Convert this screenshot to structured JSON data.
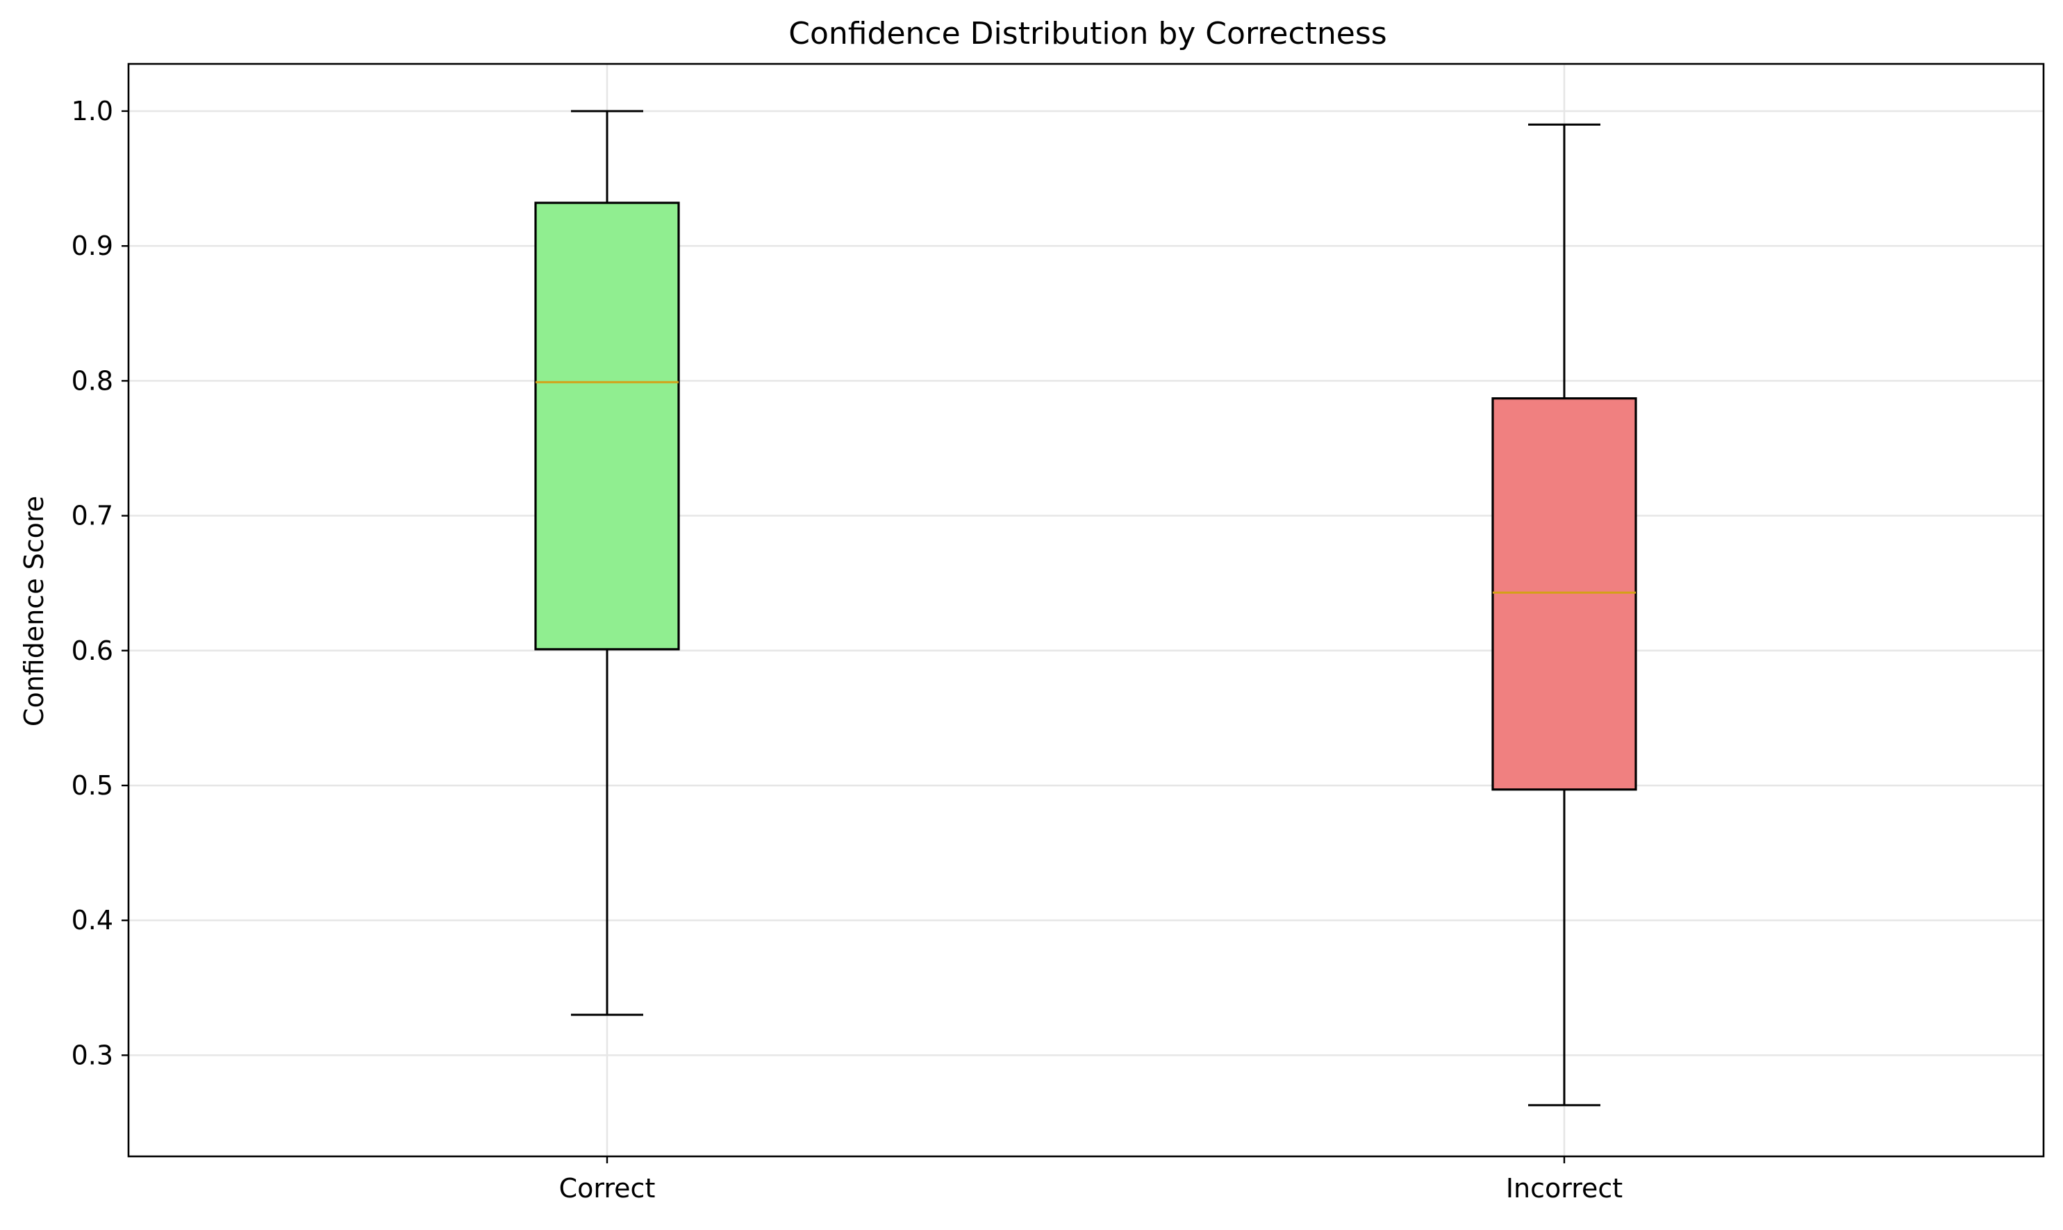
{
  "chart_data": {
    "type": "box",
    "title": "Confidence Distribution by Correctness",
    "xlabel": "",
    "ylabel": "Confidence Score",
    "ylim": [
      0.225,
      1.035
    ],
    "yticks": [
      0.3,
      0.4,
      0.5,
      0.6,
      0.7,
      0.8,
      0.9,
      1.0
    ],
    "ytick_labels": [
      "0.3",
      "0.4",
      "0.5",
      "0.6",
      "0.7",
      "0.8",
      "0.9",
      "1.0"
    ],
    "grid": true,
    "categories": [
      "Correct",
      "Incorrect"
    ],
    "boxes": [
      {
        "category": "Correct",
        "whisker_low": 0.33,
        "q1": 0.601,
        "median": 0.799,
        "q3": 0.932,
        "whisker_high": 1.0,
        "color": "#90ee90"
      },
      {
        "category": "Incorrect",
        "whisker_low": 0.263,
        "q1": 0.497,
        "median": 0.643,
        "q3": 0.787,
        "whisker_high": 0.99,
        "color": "#f08080"
      }
    ],
    "median_color": "#d4a017",
    "grid_color": "#e6e6e6"
  }
}
